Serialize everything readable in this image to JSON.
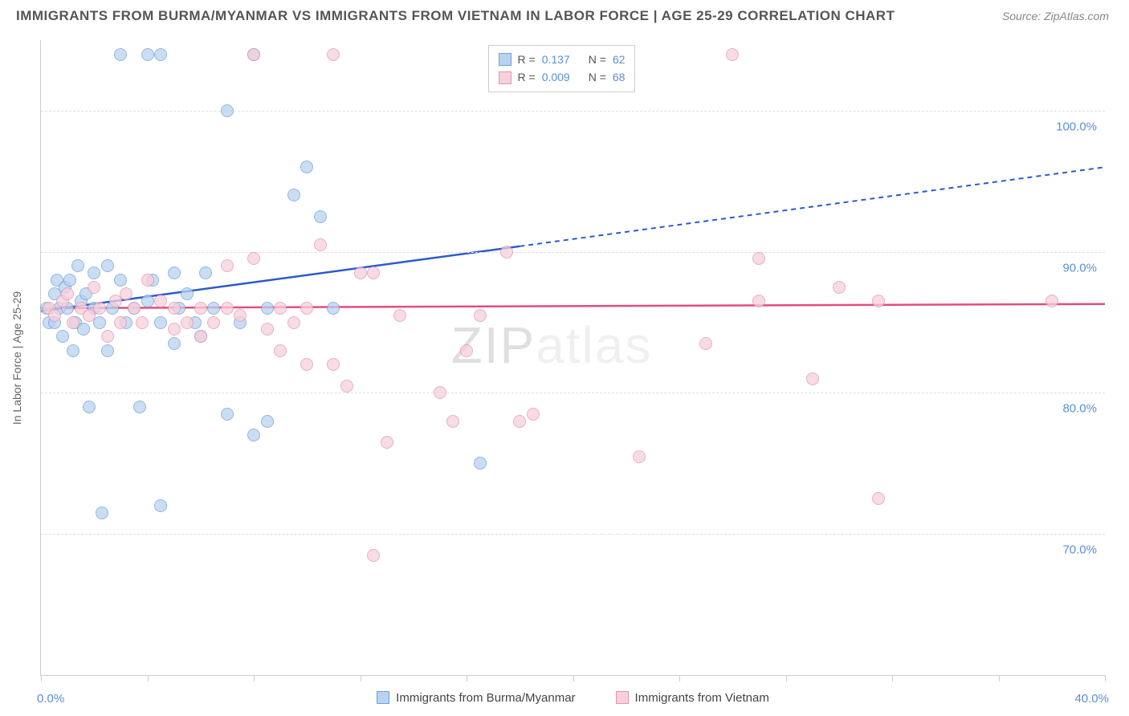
{
  "title": "IMMIGRANTS FROM BURMA/MYANMAR VS IMMIGRANTS FROM VIETNAM IN LABOR FORCE | AGE 25-29 CORRELATION CHART",
  "source": "Source: ZipAtlas.com",
  "watermark": "ZIPatlas",
  "ylabel": "In Labor Force | Age 25-29",
  "chart": {
    "type": "scatter",
    "xlim": [
      0,
      40
    ],
    "ylim": [
      60,
      105
    ],
    "ytick_labels": [
      "70.0%",
      "80.0%",
      "90.0%",
      "100.0%"
    ],
    "ytick_vals": [
      70,
      80,
      90,
      100
    ],
    "xtick_labels": [
      "0.0%",
      "40.0%"
    ],
    "xtick_vals": [
      0,
      40
    ],
    "xtick_marks": [
      0,
      4,
      8,
      12,
      16,
      20,
      24,
      28,
      32,
      36,
      40
    ],
    "grid_color": "#dddddd",
    "background": "#ffffff",
    "series": [
      {
        "name": "Immigrants from Burma/Myanmar",
        "color_fill": "#b9d2ef",
        "color_stroke": "#6f9fd8",
        "r_value": "0.137",
        "n_value": "62",
        "trend": {
          "x1": 0,
          "y1": 85.8,
          "x2": 40,
          "y2": 96.0,
          "solid_until_x": 18,
          "color": "#2a5bcc"
        },
        "points": [
          [
            0.2,
            86
          ],
          [
            0.3,
            85
          ],
          [
            0.5,
            87
          ],
          [
            0.5,
            85
          ],
          [
            0.6,
            88
          ],
          [
            0.7,
            86
          ],
          [
            0.8,
            84
          ],
          [
            0.9,
            87.5
          ],
          [
            1.0,
            86
          ],
          [
            1.1,
            88
          ],
          [
            1.2,
            83
          ],
          [
            1.3,
            85
          ],
          [
            1.4,
            89
          ],
          [
            1.5,
            86.5
          ],
          [
            1.6,
            84.5
          ],
          [
            1.7,
            87
          ],
          [
            1.8,
            79
          ],
          [
            2.0,
            86
          ],
          [
            2.0,
            88.5
          ],
          [
            2.2,
            85
          ],
          [
            2.3,
            71.5
          ],
          [
            2.5,
            89
          ],
          [
            2.5,
            83
          ],
          [
            2.7,
            86
          ],
          [
            3.0,
            104
          ],
          [
            3.0,
            88
          ],
          [
            3.2,
            85
          ],
          [
            3.5,
            86
          ],
          [
            3.7,
            79
          ],
          [
            4.0,
            86.5
          ],
          [
            4.0,
            104
          ],
          [
            4.2,
            88
          ],
          [
            4.5,
            72
          ],
          [
            4.5,
            85
          ],
          [
            4.5,
            104
          ],
          [
            5.0,
            88.5
          ],
          [
            5.0,
            83.5
          ],
          [
            5.2,
            86
          ],
          [
            5.5,
            87
          ],
          [
            5.8,
            85
          ],
          [
            6.0,
            84
          ],
          [
            6.2,
            88.5
          ],
          [
            6.5,
            86
          ],
          [
            7.0,
            78.5
          ],
          [
            7.0,
            100
          ],
          [
            7.5,
            85
          ],
          [
            8.0,
            77
          ],
          [
            8.0,
            104
          ],
          [
            8.5,
            86
          ],
          [
            8.5,
            78
          ],
          [
            9.5,
            94
          ],
          [
            10.0,
            96
          ],
          [
            10.5,
            92.5
          ],
          [
            11.0,
            86
          ],
          [
            16.5,
            75
          ]
        ]
      },
      {
        "name": "Immigrants from Vietnam",
        "color_fill": "#f6d0db",
        "color_stroke": "#e296ae",
        "r_value": "0.009",
        "n_value": "68",
        "trend": {
          "x1": 0,
          "y1": 86.0,
          "x2": 40,
          "y2": 86.3,
          "solid_until_x": 40,
          "color": "#e24e7d"
        },
        "points": [
          [
            0.3,
            86
          ],
          [
            0.5,
            85.5
          ],
          [
            0.8,
            86.5
          ],
          [
            1.0,
            87
          ],
          [
            1.2,
            85
          ],
          [
            1.5,
            86
          ],
          [
            1.8,
            85.5
          ],
          [
            2.0,
            87.5
          ],
          [
            2.2,
            86
          ],
          [
            2.5,
            84
          ],
          [
            2.8,
            86.5
          ],
          [
            3.0,
            85
          ],
          [
            3.2,
            87
          ],
          [
            3.5,
            86
          ],
          [
            3.8,
            85
          ],
          [
            4.0,
            88
          ],
          [
            4.5,
            86.5
          ],
          [
            5.0,
            84.5
          ],
          [
            5.0,
            86
          ],
          [
            5.5,
            85
          ],
          [
            6.0,
            86
          ],
          [
            6.0,
            84
          ],
          [
            6.5,
            85
          ],
          [
            7.0,
            86
          ],
          [
            7.0,
            89
          ],
          [
            7.5,
            85.5
          ],
          [
            8.0,
            104
          ],
          [
            8.0,
            89.5
          ],
          [
            8.5,
            84.5
          ],
          [
            9.0,
            86
          ],
          [
            9.0,
            83
          ],
          [
            9.5,
            85
          ],
          [
            10.0,
            82
          ],
          [
            10.0,
            86
          ],
          [
            10.5,
            90.5
          ],
          [
            11.0,
            104
          ],
          [
            11.0,
            82
          ],
          [
            11.5,
            80.5
          ],
          [
            12.0,
            88.5
          ],
          [
            12.5,
            88.5
          ],
          [
            13.0,
            76.5
          ],
          [
            12.5,
            68.5
          ],
          [
            13.5,
            85.5
          ],
          [
            15.0,
            80
          ],
          [
            15.5,
            78
          ],
          [
            16.0,
            83
          ],
          [
            16.5,
            85.5
          ],
          [
            17.5,
            90
          ],
          [
            18.0,
            78
          ],
          [
            18.5,
            78.5
          ],
          [
            22.5,
            75.5
          ],
          [
            25.0,
            83.5
          ],
          [
            26.0,
            104
          ],
          [
            27.0,
            86.5
          ],
          [
            27.0,
            89.5
          ],
          [
            29.0,
            81
          ],
          [
            30.0,
            87.5
          ],
          [
            31.5,
            86.5
          ],
          [
            31.5,
            72.5
          ],
          [
            38.0,
            86.5
          ]
        ]
      }
    ],
    "legend_top_labels": {
      "R": "R =",
      "N": "N ="
    },
    "legend_bottom": [
      {
        "label": "Immigrants from Burma/Myanmar",
        "fill": "#b9d2ef",
        "stroke": "#6f9fd8"
      },
      {
        "label": "Immigrants from Vietnam",
        "fill": "#f6d0db",
        "stroke": "#e296ae"
      }
    ]
  }
}
